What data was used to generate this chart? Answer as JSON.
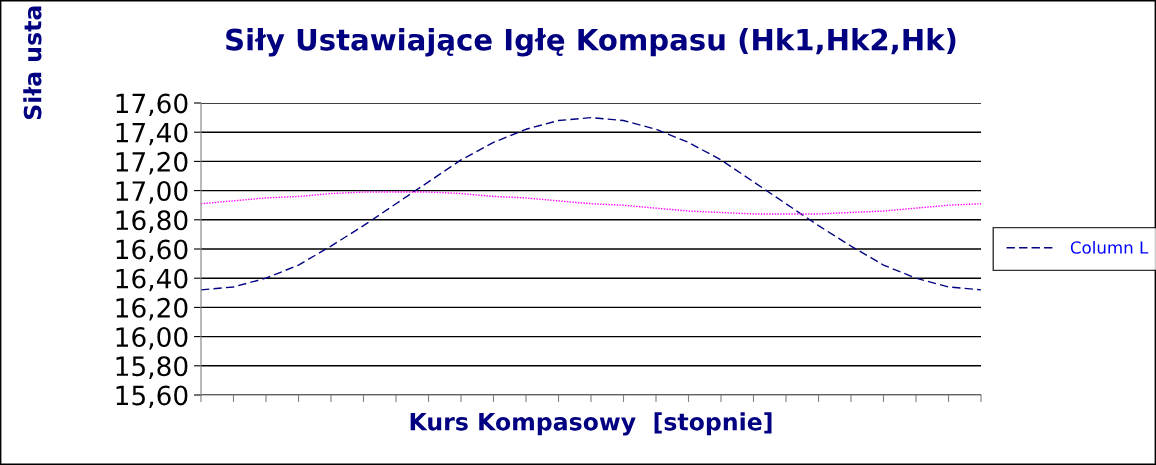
{
  "chart_data": {
    "type": "line",
    "title": "Siły Ustawiające Igłę Kompasu (Hk1,Hk2,Hk)",
    "xlabel": "Kurs Kompasowy  [stopnie]",
    "ylabel": "Siła usta",
    "categories": [
      null,
      null,
      null,
      null,
      null,
      null,
      null,
      null,
      null,
      null,
      null,
      null,
      null,
      null,
      null,
      null,
      null,
      null,
      null,
      null,
      null,
      null,
      null,
      null,
      null
    ],
    "series": [
      {
        "name": "Column L",
        "color": "#000080",
        "line_style": "dashed",
        "values": [
          16.32,
          16.34,
          16.4,
          16.49,
          16.62,
          16.76,
          16.91,
          17.06,
          17.21,
          17.33,
          17.42,
          17.48,
          17.5,
          17.48,
          17.42,
          17.33,
          17.21,
          17.06,
          16.91,
          16.76,
          16.62,
          16.49,
          16.4,
          16.34,
          16.32
        ]
      },
      {
        "color": "#ff00ff",
        "line_style": "dotted",
        "values": [
          16.91,
          16.93,
          16.95,
          16.96,
          16.98,
          16.99,
          16.99,
          16.99,
          16.98,
          16.96,
          16.95,
          16.93,
          16.91,
          16.9,
          16.88,
          16.86,
          16.85,
          16.84,
          16.84,
          16.84,
          16.85,
          16.86,
          16.88,
          16.9,
          16.91
        ]
      }
    ],
    "ylim": [
      15.6,
      17.6
    ],
    "yticks": [
      {
        "value": 15.6,
        "label": "15,60"
      },
      {
        "value": 15.8,
        "label": "15,80"
      },
      {
        "value": 16.0,
        "label": "16,00"
      },
      {
        "value": 16.2,
        "label": "16,20"
      },
      {
        "value": 16.4,
        "label": "16,40"
      },
      {
        "value": 16.6,
        "label": "16,60"
      },
      {
        "value": 16.8,
        "label": "16,80"
      },
      {
        "value": 17.0,
        "label": "17,00"
      },
      {
        "value": 17.2,
        "label": "17,20"
      },
      {
        "value": 17.4,
        "label": "17,40"
      },
      {
        "value": 17.6,
        "label": "17,60"
      }
    ],
    "grid": "y",
    "legend": "right",
    "marker": "none"
  }
}
